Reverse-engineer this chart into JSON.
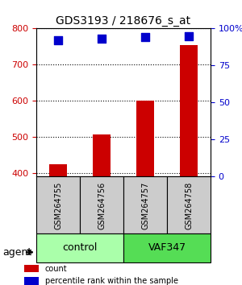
{
  "title": "GDS3193 / 218676_s_at",
  "samples": [
    "GSM264755",
    "GSM264756",
    "GSM264757",
    "GSM264758"
  ],
  "counts": [
    425,
    507,
    600,
    755
  ],
  "percentiles": [
    92,
    93,
    94,
    95
  ],
  "ylim_left": [
    390,
    800
  ],
  "ylim_right": [
    0,
    100
  ],
  "yticks_left": [
    400,
    500,
    600,
    700,
    800
  ],
  "yticks_right": [
    0,
    25,
    50,
    75,
    100
  ],
  "ytick_labels_right": [
    "0",
    "25",
    "50",
    "75",
    "100%"
  ],
  "groups": [
    {
      "label": "control",
      "samples": [
        0,
        1
      ],
      "color": "#aaffaa"
    },
    {
      "label": "VAF347",
      "samples": [
        2,
        3
      ],
      "color": "#55dd55"
    }
  ],
  "group_label": "agent",
  "bar_color": "#cc0000",
  "dot_color": "#0000cc",
  "bar_width": 0.4,
  "dot_size": 60,
  "sample_box_color": "#cccccc",
  "background_color": "#ffffff",
  "grid_color": "#000000",
  "left_tick_color": "#cc0000",
  "right_tick_color": "#0000cc",
  "legend_items": [
    {
      "label": "count",
      "color": "#cc0000"
    },
    {
      "label": "percentile rank within the sample",
      "color": "#0000cc"
    }
  ]
}
